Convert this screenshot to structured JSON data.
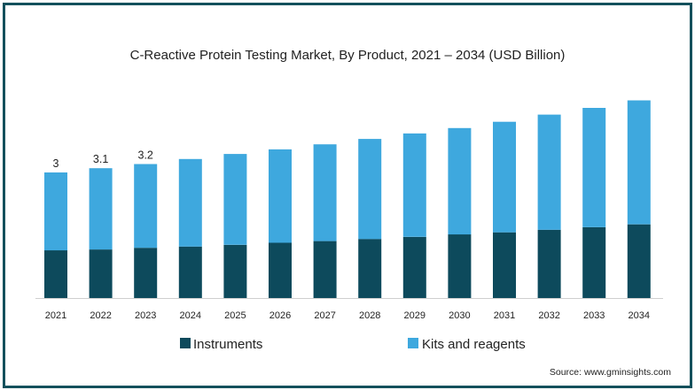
{
  "chart_data": {
    "type": "bar",
    "stacked": true,
    "title": "C-Reactive Protein Testing Market, By Product, 2021 – 2034 (USD Billion)",
    "categories": [
      "2021",
      "2022",
      "2023",
      "2024",
      "2025",
      "2026",
      "2027",
      "2028",
      "2029",
      "2030",
      "2031",
      "2032",
      "2033",
      "2034"
    ],
    "series": [
      {
        "name": "Instruments",
        "color": "#0d4a5c",
        "values": [
          1.14,
          1.16,
          1.2,
          1.23,
          1.27,
          1.32,
          1.36,
          1.41,
          1.46,
          1.52,
          1.57,
          1.63,
          1.69,
          1.76
        ]
      },
      {
        "name": "Kits and reagents",
        "color": "#3ea8de",
        "values": [
          1.86,
          1.94,
          2.0,
          2.09,
          2.17,
          2.23,
          2.31,
          2.39,
          2.47,
          2.54,
          2.64,
          2.75,
          2.85,
          2.96
        ]
      }
    ],
    "data_labels": [
      "3",
      "3.1",
      "3.2"
    ],
    "ylim": [
      0,
      4.9
    ],
    "grid": false,
    "legend_position": "bottom",
    "source": "Source: www.gminsights.com"
  }
}
